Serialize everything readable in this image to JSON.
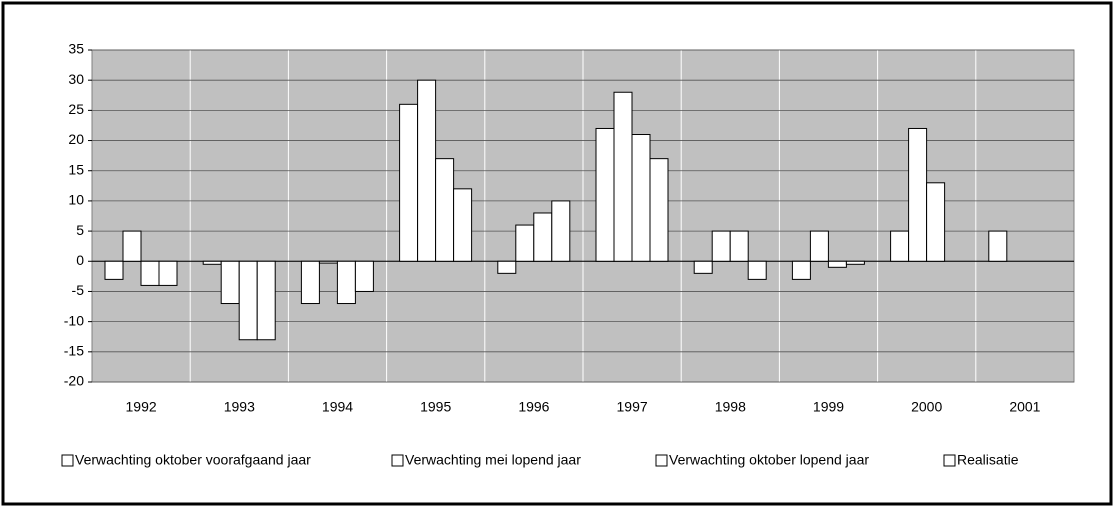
{
  "chart_data": {
    "type": "bar",
    "categories": [
      "1992",
      "1993",
      "1994",
      "1995",
      "1996",
      "1997",
      "1998",
      "1999",
      "2000",
      "2001"
    ],
    "series": [
      {
        "name": "Verwachting oktober voorafgaand jaar",
        "color": "#ffffff",
        "values": [
          -3,
          -0.5,
          -7,
          26,
          -2,
          22,
          -2,
          -3,
          5,
          5
        ]
      },
      {
        "name": "Verwachting mei lopend jaar",
        "color": "#ffffff",
        "values": [
          5,
          -7,
          -0.3,
          30,
          6,
          28,
          5,
          5,
          22,
          null
        ]
      },
      {
        "name": "Verwachting oktober lopend jaar",
        "color": "#ffffff",
        "values": [
          -4,
          -13,
          -7,
          17,
          8,
          21,
          5,
          -1,
          13,
          null
        ]
      },
      {
        "name": "Realisatie",
        "color": "#ffffff",
        "values": [
          -4,
          -13,
          -5,
          12,
          10,
          17,
          -3,
          -0.5,
          null,
          null
        ]
      }
    ],
    "ylim": [
      -20,
      35
    ],
    "yticks": [
      -20,
      -15,
      -10,
      -5,
      0,
      5,
      10,
      15,
      20,
      25,
      30,
      35
    ],
    "grid": true,
    "legend": "bottom"
  }
}
